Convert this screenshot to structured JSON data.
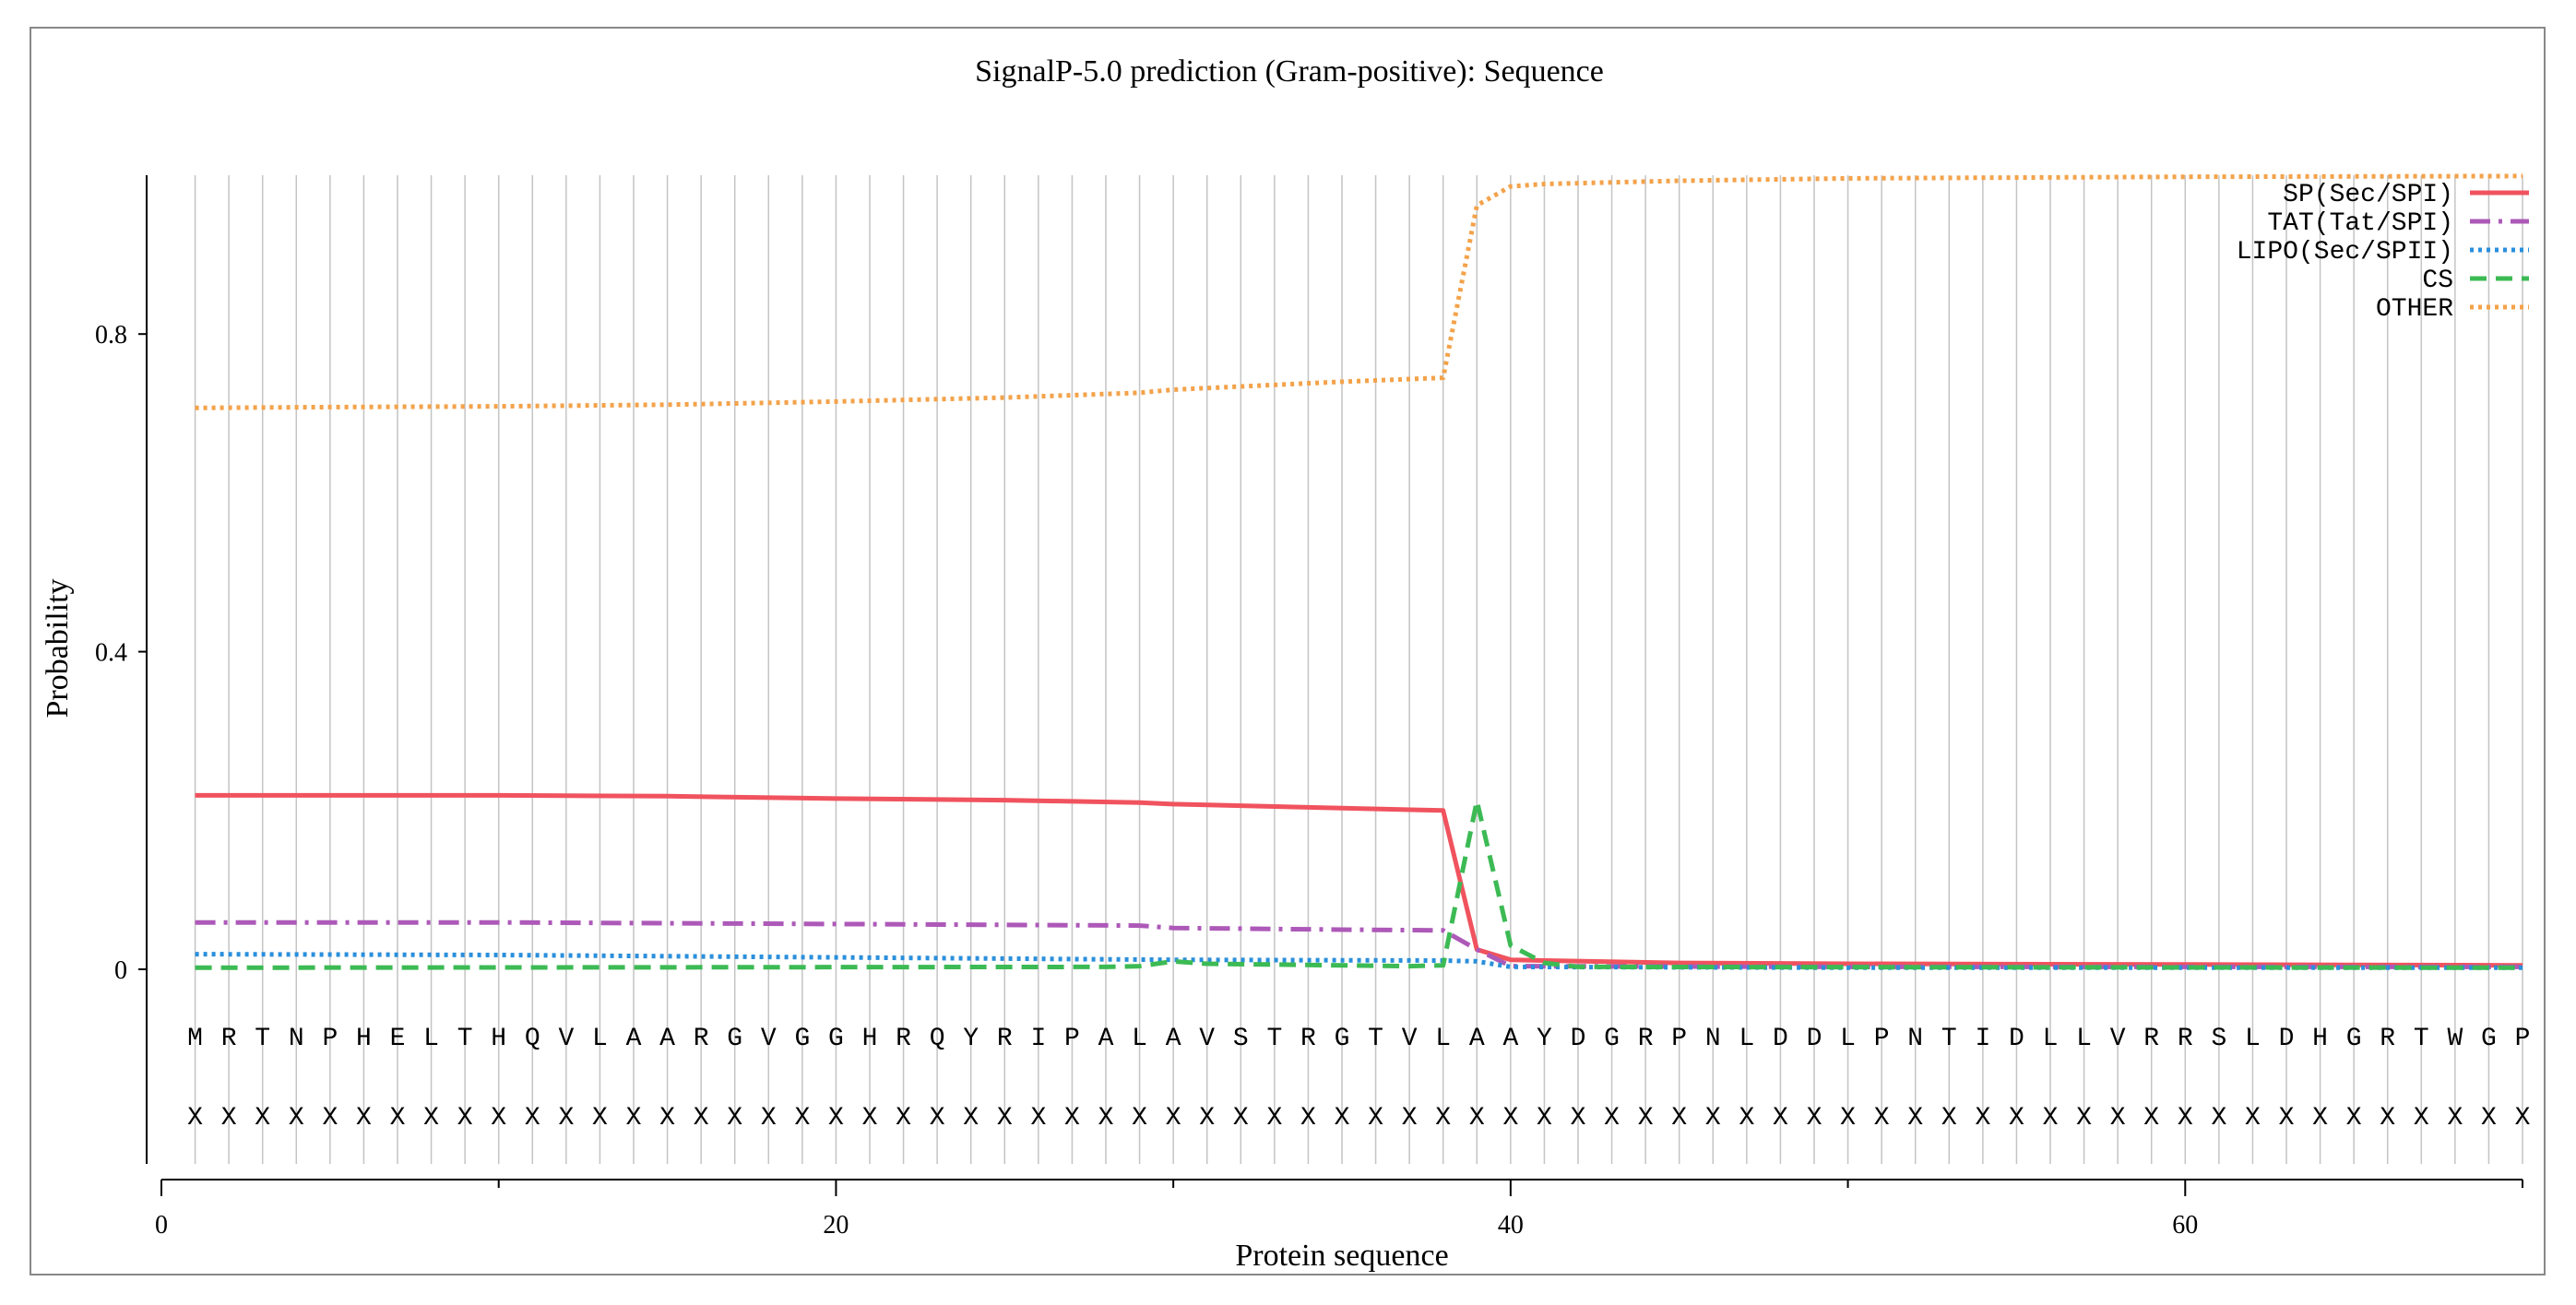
{
  "chart_data": {
    "type": "line",
    "title": "SignalP-5.0 prediction (Gram-positive):  Sequence",
    "xlabel": "Protein sequence",
    "ylabel": "Probability",
    "xlim": [
      0,
      70
    ],
    "ylim": [
      -0.24,
      1.0
    ],
    "xticks": [
      0,
      20,
      40,
      60
    ],
    "xminor": [
      10,
      30,
      50,
      70
    ],
    "yticks": [
      0,
      0.4,
      0.8
    ],
    "ytick_labels": [
      "0",
      "0.4",
      "0.8"
    ],
    "grid": "vertical line at each residue",
    "legend_position": "top-right",
    "sequence": [
      "M",
      "R",
      "T",
      "N",
      "P",
      "H",
      "E",
      "L",
      "T",
      "H",
      "Q",
      "V",
      "L",
      "A",
      "A",
      "R",
      "G",
      "V",
      "G",
      "G",
      "H",
      "R",
      "Q",
      "Y",
      "R",
      "I",
      "P",
      "A",
      "L",
      "A",
      "V",
      "S",
      "T",
      "R",
      "G",
      "T",
      "V",
      "L",
      "A",
      "A",
      "Y",
      "D",
      "G",
      "R",
      "P",
      "N",
      "L",
      "D",
      "D",
      "L",
      "P",
      "N",
      "T",
      "I",
      "D",
      "L",
      "L",
      "V",
      "R",
      "R",
      "S",
      "L",
      "D",
      "H",
      "G",
      "R",
      "T",
      "W",
      "G",
      "P"
    ],
    "annotation_marker": "X",
    "series": [
      {
        "name": "SP(Sec/SPI)",
        "color": "#f0535e",
        "style": "solid",
        "points": [
          [
            1,
            0.219
          ],
          [
            10,
            0.219
          ],
          [
            15,
            0.218
          ],
          [
            20,
            0.215
          ],
          [
            25,
            0.213
          ],
          [
            29,
            0.21
          ],
          [
            30,
            0.208
          ],
          [
            35,
            0.203
          ],
          [
            38,
            0.2
          ],
          [
            39,
            0.025
          ],
          [
            40,
            0.012
          ],
          [
            41,
            0.011
          ],
          [
            45,
            0.008
          ],
          [
            50,
            0.007
          ],
          [
            60,
            0.006
          ],
          [
            70,
            0.005
          ]
        ]
      },
      {
        "name": "TAT(Tat/SPI)",
        "color": "#ad59b8",
        "style": "dashdot",
        "points": [
          [
            1,
            0.059
          ],
          [
            10,
            0.059
          ],
          [
            20,
            0.057
          ],
          [
            29,
            0.055
          ],
          [
            30,
            0.052
          ],
          [
            35,
            0.05
          ],
          [
            38,
            0.049
          ],
          [
            39,
            0.025
          ],
          [
            40,
            0.004
          ],
          [
            50,
            0.003
          ],
          [
            70,
            0.003
          ]
        ]
      },
      {
        "name": "LIPO(Sec/SPII)",
        "color": "#2a8fdc",
        "style": "dotted",
        "points": [
          [
            1,
            0.019
          ],
          [
            10,
            0.018
          ],
          [
            20,
            0.015
          ],
          [
            30,
            0.012
          ],
          [
            38,
            0.011
          ],
          [
            39,
            0.01
          ],
          [
            40,
            0.003
          ],
          [
            50,
            0.002
          ],
          [
            70,
            0.002
          ]
        ]
      },
      {
        "name": "CS",
        "color": "#3cba54",
        "style": "dashed",
        "points": [
          [
            1,
            0.002
          ],
          [
            28,
            0.003
          ],
          [
            29,
            0.004
          ],
          [
            30,
            0.01
          ],
          [
            31,
            0.007
          ],
          [
            37,
            0.004
          ],
          [
            38,
            0.005
          ],
          [
            39,
            0.212
          ],
          [
            40,
            0.03
          ],
          [
            41,
            0.008
          ],
          [
            42,
            0.003
          ],
          [
            70,
            0.002
          ]
        ]
      },
      {
        "name": "OTHER",
        "color": "#f4a24a",
        "style": "dotted",
        "points": [
          [
            1,
            0.707
          ],
          [
            5,
            0.708
          ],
          [
            10,
            0.709
          ],
          [
            15,
            0.711
          ],
          [
            20,
            0.715
          ],
          [
            25,
            0.72
          ],
          [
            29,
            0.726
          ],
          [
            30,
            0.73
          ],
          [
            35,
            0.74
          ],
          [
            38,
            0.745
          ],
          [
            39,
            0.962
          ],
          [
            40,
            0.986
          ],
          [
            41,
            0.989
          ],
          [
            45,
            0.993
          ],
          [
            50,
            0.996
          ],
          [
            60,
            0.998
          ],
          [
            70,
            0.999
          ]
        ]
      }
    ]
  }
}
